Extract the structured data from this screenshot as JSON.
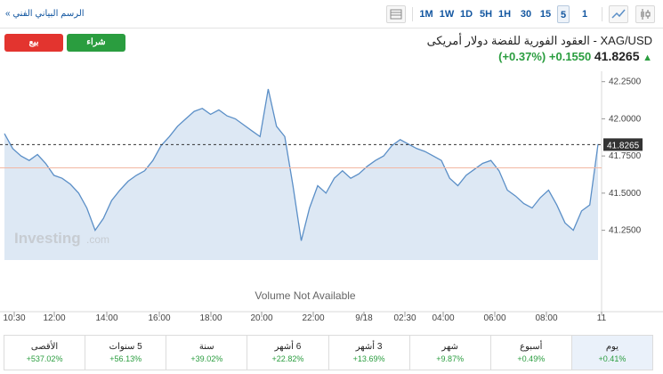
{
  "toolbar": {
    "advanced_chart_link": "الرسم البياني الفني »",
    "timeframes": [
      "1M",
      "1W",
      "1D",
      "5H",
      "1H",
      "30",
      "15",
      "5",
      "1"
    ],
    "active_timeframe": "5"
  },
  "actions": {
    "sell_label": "بيع",
    "buy_label": "شراء"
  },
  "instrument": {
    "title": "XAG/USD - العقود الفورية للفضة دولار أمريكى",
    "last": "41.8265",
    "change": "+0.1550",
    "change_pct": "(+0.37%)",
    "direction_color": "#2a9d3f"
  },
  "chart_data": {
    "type": "area",
    "x_labels": [
      "10:30",
      "12:00",
      "14:00",
      "16:00",
      "18:00",
      "20:00",
      "22:00",
      "9/18",
      "02:30",
      "04:00",
      "06:00",
      "08:00",
      "11"
    ],
    "y_ticks": [
      "42.2500",
      "42.0000",
      "41.7500",
      "41.5000",
      "41.2500"
    ],
    "ylim": [
      41.05,
      42.32
    ],
    "last_price_label": "41.8265",
    "reference_price": 41.67,
    "watermark": "Investing.com",
    "volume_note": "Volume Not Available",
    "values": [
      41.9,
      41.8,
      41.75,
      41.72,
      41.76,
      41.7,
      41.62,
      41.6,
      41.56,
      41.5,
      41.4,
      41.25,
      41.33,
      41.45,
      41.52,
      41.58,
      41.62,
      41.65,
      41.72,
      41.82,
      41.88,
      41.95,
      42.0,
      42.05,
      42.07,
      42.03,
      42.06,
      42.02,
      42.0,
      41.96,
      41.92,
      41.88,
      42.2,
      41.95,
      41.88,
      41.55,
      41.18,
      41.4,
      41.55,
      41.5,
      41.6,
      41.65,
      41.6,
      41.63,
      41.68,
      41.72,
      41.75,
      41.82,
      41.86,
      41.83,
      41.8,
      41.78,
      41.75,
      41.72,
      41.6,
      41.55,
      41.62,
      41.66,
      41.7,
      41.72,
      41.65,
      41.52,
      41.48,
      41.43,
      41.4,
      41.47,
      41.52,
      41.42,
      41.3,
      41.25,
      41.38,
      41.42,
      41.83
    ],
    "colors": {
      "line": "#5b8fc7",
      "fill": "#dde8f4",
      "ref_line": "#f2b7a3",
      "last_line": "#333333"
    }
  },
  "periods": [
    {
      "label": "الأقصى",
      "value": "+537.02%"
    },
    {
      "label": "5 سنوات",
      "value": "+56.13%"
    },
    {
      "label": "سنة",
      "value": "+39.02%"
    },
    {
      "label": "6 أشهر",
      "value": "+22.82%"
    },
    {
      "label": "3 أشهر",
      "value": "+13.69%"
    },
    {
      "label": "شهر",
      "value": "+9.87%"
    },
    {
      "label": "أسبوع",
      "value": "+0.49%"
    },
    {
      "label": "يوم",
      "value": "+0.41%"
    }
  ]
}
